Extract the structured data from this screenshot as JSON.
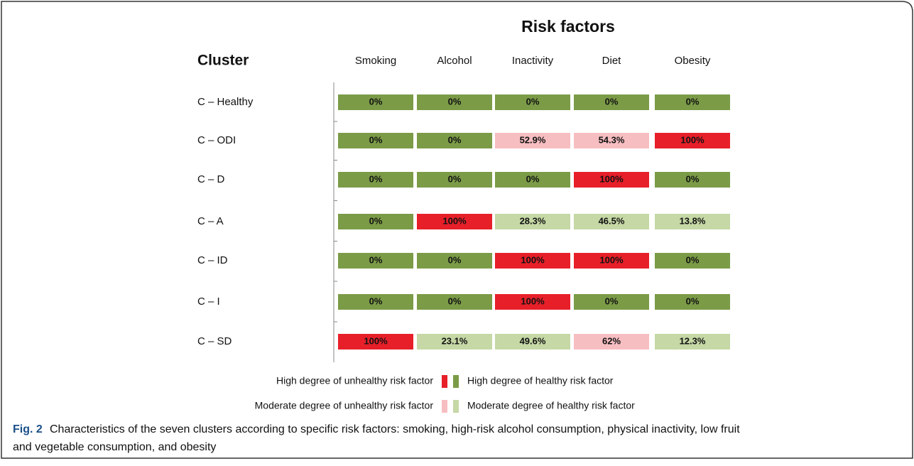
{
  "chart_data": {
    "type": "heatmap",
    "title": "Risk factors",
    "y_label": "Cluster",
    "columns": [
      "Smoking",
      "Alcohol",
      "Inactivity",
      "Diet",
      "Obesity"
    ],
    "categories": [
      "C – Healthy",
      "C – ODI",
      "C – D",
      "C – A",
      "C – ID",
      "C – I",
      "C – SD"
    ],
    "values": [
      [
        0,
        0,
        0,
        0,
        0
      ],
      [
        0,
        0,
        52.9,
        54.3,
        100
      ],
      [
        0,
        0,
        0,
        100,
        0
      ],
      [
        0,
        100,
        28.3,
        46.5,
        13.8
      ],
      [
        0,
        0,
        100,
        100,
        0
      ],
      [
        0,
        0,
        100,
        0,
        0
      ],
      [
        100,
        23.1,
        49.6,
        62,
        12.3
      ]
    ],
    "value_labels": [
      [
        "0%",
        "0%",
        "0%",
        "0%",
        "0%"
      ],
      [
        "0%",
        "0%",
        "52.9%",
        "54.3%",
        "100%"
      ],
      [
        "0%",
        "0%",
        "0%",
        "100%",
        "0%"
      ],
      [
        "0%",
        "100%",
        "28.3%",
        "46.5%",
        "13.8%"
      ],
      [
        "0%",
        "0%",
        "100%",
        "100%",
        "0%"
      ],
      [
        "0%",
        "0%",
        "100%",
        "0%",
        "0%"
      ],
      [
        "100%",
        "23.1%",
        "49.6%",
        "62%",
        "12.3%"
      ]
    ],
    "colors": [
      [
        "#7b9b47",
        "#7b9b47",
        "#7b9b47",
        "#7b9b47",
        "#7b9b47"
      ],
      [
        "#7b9b47",
        "#7b9b47",
        "#f7bec1",
        "#f7bec1",
        "#e71f29"
      ],
      [
        "#7b9b47",
        "#7b9b47",
        "#7b9b47",
        "#e71f29",
        "#7b9b47"
      ],
      [
        "#7b9b47",
        "#e71f29",
        "#c5d8a5",
        "#c5d8a5",
        "#c5d8a5"
      ],
      [
        "#7b9b47",
        "#7b9b47",
        "#e71f29",
        "#e71f29",
        "#7b9b47"
      ],
      [
        "#7b9b47",
        "#7b9b47",
        "#e71f29",
        "#7b9b47",
        "#7b9b47"
      ],
      [
        "#e71f29",
        "#c5d8a5",
        "#c5d8a5",
        "#f7bec1",
        "#c5d8a5"
      ]
    ],
    "legend": [
      {
        "name": "High degree of unhealthy risk factor",
        "color": "#e71f29"
      },
      {
        "name": "High degree of healthy risk factor",
        "color": "#7b9b47"
      },
      {
        "name": "Moderate degree of unhealthy risk factor",
        "color": "#f7bec1"
      },
      {
        "name": "Moderate degree of healthy risk factor",
        "color": "#c5d8a5"
      }
    ],
    "caption": {
      "label": "Fig. 2",
      "lines": [
        "Characteristics of the seven clusters according to specific risk factors: smoking, high-risk alcohol consumption, physical inactivity, low fruit",
        "and vegetable consumption, and obesity"
      ]
    }
  }
}
